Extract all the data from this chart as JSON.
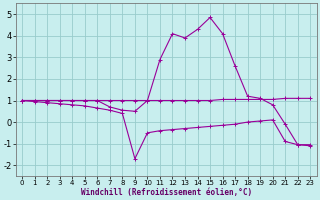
{
  "line1_x": [
    0,
    1,
    2,
    3,
    4,
    5,
    6,
    7,
    8,
    9,
    10,
    11,
    12,
    13,
    14,
    15,
    16,
    17,
    18,
    19,
    20,
    21,
    22,
    23
  ],
  "line1_y": [
    1.0,
    1.0,
    1.0,
    1.0,
    1.0,
    1.0,
    1.0,
    1.0,
    1.0,
    1.0,
    1.0,
    1.0,
    1.0,
    1.0,
    1.0,
    1.0,
    1.05,
    1.05,
    1.05,
    1.05,
    1.05,
    1.1,
    1.1,
    1.1
  ],
  "line2_x": [
    0,
    1,
    2,
    3,
    4,
    5,
    6,
    7,
    8,
    9,
    10,
    11,
    12,
    13,
    14,
    15,
    16,
    17,
    18,
    19,
    20,
    21,
    22,
    23
  ],
  "line2_y": [
    1.0,
    1.0,
    1.0,
    1.0,
    1.0,
    1.0,
    1.0,
    0.7,
    0.55,
    0.5,
    1.0,
    2.9,
    4.1,
    3.9,
    4.3,
    4.85,
    4.1,
    2.6,
    1.2,
    1.1,
    0.8,
    -0.1,
    -1.05,
    -1.05
  ],
  "line3_x": [
    0,
    1,
    2,
    3,
    4,
    5,
    6,
    7,
    8,
    9,
    10,
    11,
    12,
    13,
    14,
    15,
    16,
    17,
    18,
    19,
    20,
    21,
    22,
    23
  ],
  "line3_y": [
    1.0,
    0.95,
    0.9,
    0.85,
    0.8,
    0.75,
    0.65,
    0.55,
    0.4,
    -1.7,
    -0.5,
    -0.4,
    -0.35,
    -0.3,
    -0.25,
    -0.2,
    -0.15,
    -0.1,
    0.0,
    0.05,
    0.1,
    -0.9,
    -1.05,
    -1.1
  ],
  "color": "#990099",
  "bg_color": "#c8eeee",
  "grid_color": "#99cccc",
  "xlabel": "Windchill (Refroidissement éolien,°C)",
  "ylim": [
    -2.5,
    5.5
  ],
  "xlim": [
    -0.5,
    23.5
  ],
  "yticks": [
    -2,
    -1,
    0,
    1,
    2,
    3,
    4,
    5
  ],
  "xticks": [
    0,
    1,
    2,
    3,
    4,
    5,
    6,
    7,
    8,
    9,
    10,
    11,
    12,
    13,
    14,
    15,
    16,
    17,
    18,
    19,
    20,
    21,
    22,
    23
  ]
}
